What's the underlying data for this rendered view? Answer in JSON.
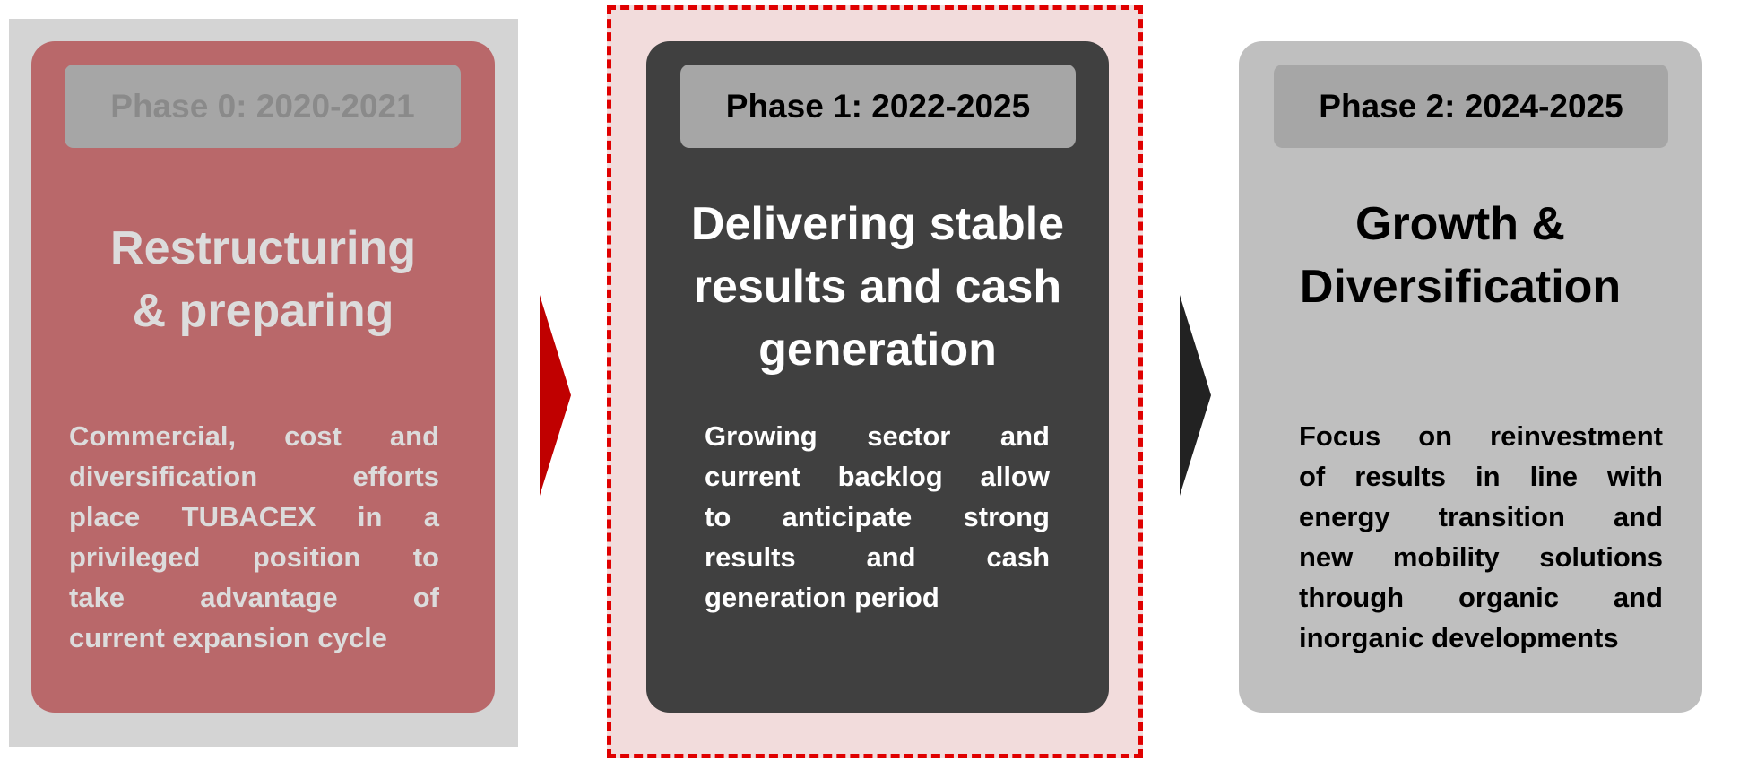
{
  "phases": [
    {
      "label": "Phase 0: 2020-2021",
      "title": [
        "Restructuring",
        "& preparing"
      ],
      "body": [
        "Commercial, cost and",
        "diversification efforts",
        "place TUBACEX in a",
        "privileged position to",
        "take advantage of",
        "current expansion cycle"
      ]
    },
    {
      "label": "Phase 1: 2022-2025",
      "title": [
        "Delivering stable",
        "results and cash",
        "generation"
      ],
      "body": [
        "Growing sector and",
        "current backlog allow",
        "to anticipate strong",
        "results and cash",
        "generation period"
      ]
    },
    {
      "label": "Phase 2: 2024-2025",
      "title": [
        "Growth &",
        "Diversification"
      ],
      "body": [
        "Focus on reinvestment",
        "of results in line with",
        "energy transition and",
        "new mobility solutions",
        "through organic and",
        "inorganic developments"
      ]
    }
  ]
}
